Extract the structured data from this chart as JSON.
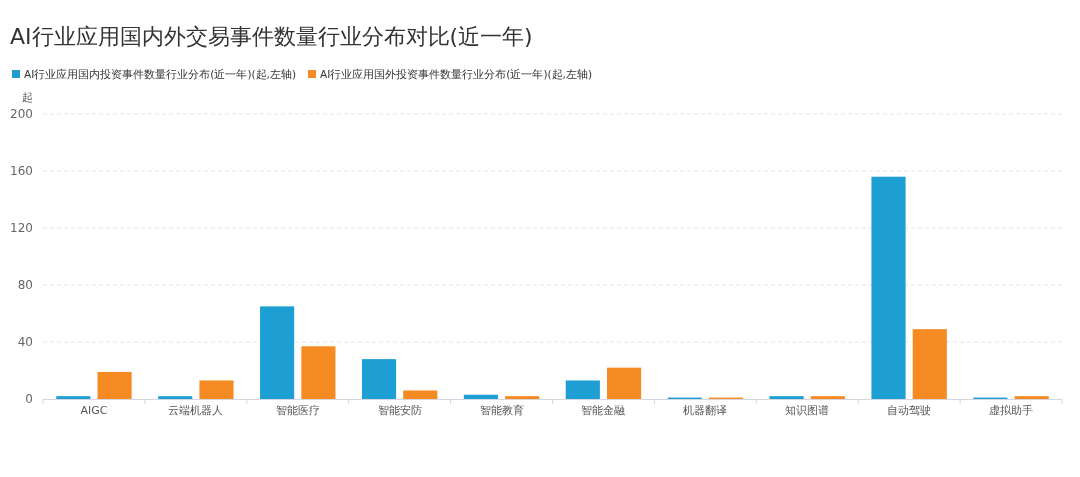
{
  "chart_data": {
    "type": "bar",
    "title": "AI行业应用国内外交易事件数量行业分布对比(近一年)",
    "ylabel": "起",
    "categories": [
      "AIGC",
      "云端机器人",
      "智能医疗",
      "智能安防",
      "智能教育",
      "智能金融",
      "机器翻译",
      "知识图谱",
      "自动驾驶",
      "虚拟助手"
    ],
    "series": [
      {
        "name": "AI行业应用国内投资事件数量行业分布(近一年)(起,左轴)",
        "color": "#1e9fd4",
        "values": [
          2,
          2,
          65,
          28,
          3,
          13,
          1,
          2,
          156,
          1
        ]
      },
      {
        "name": "AI行业应用国外投资事件数量行业分布(近一年)(起,左轴)",
        "color": "#f68b24",
        "values": [
          19,
          13,
          37,
          6,
          2,
          22,
          1,
          2,
          49,
          2
        ]
      }
    ],
    "ylim": [
      0,
      200
    ],
    "yticks": [
      0,
      40,
      80,
      120,
      160,
      200
    ],
    "grid": "y",
    "legend": "top left"
  }
}
